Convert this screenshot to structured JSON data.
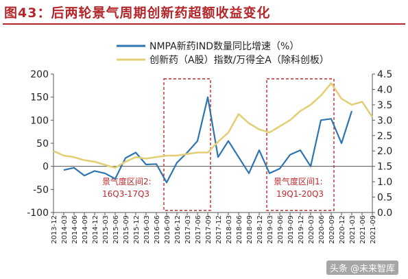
{
  "figure_title": "图43：后两轮景气周期创新药超额收益变化",
  "watermark": "头条 @未来智库",
  "chart_data": {
    "type": "line",
    "title": "",
    "grid": false,
    "legend_position": "top-center",
    "y_left": {
      "min": -100,
      "max": 200,
      "ticks": [
        -100,
        -50,
        0,
        50,
        100,
        150,
        200
      ]
    },
    "y_right": {
      "min": 0,
      "max": 4.5,
      "ticks": [
        "0.0",
        "0.5",
        "1.0",
        "1.5",
        "2.0",
        "2.5",
        "3.0",
        "3.5",
        "4.0",
        "4.5"
      ]
    },
    "x_ticks": [
      "2013-12",
      "2014-03",
      "2014-06",
      "2014-09",
      "2014-12",
      "2015-03",
      "2015-06",
      "2015-09",
      "2015-12",
      "2016-03",
      "2016-06",
      "2016-09",
      "2016-12",
      "2017-03",
      "2017-06",
      "2017-09",
      "2017-12",
      "2018-03",
      "2018-06",
      "2018-09",
      "2018-12",
      "2019-03",
      "2019-06",
      "2019-09",
      "2019-12",
      "2020-03",
      "2020-06",
      "2020-09",
      "2020-12",
      "2021-03",
      "2021-06",
      "2021-09"
    ],
    "series": [
      {
        "name": "NMPA新药IND数量同比增速（%）",
        "axis": "left",
        "color": "#2e74b0",
        "points": [
          [
            "2014-03",
            -8
          ],
          [
            "2014-06",
            -3
          ],
          [
            "2014-09",
            -20
          ],
          [
            "2014-12",
            -10
          ],
          [
            "2015-03",
            -15
          ],
          [
            "2015-06",
            -27
          ],
          [
            "2015-09",
            18
          ],
          [
            "2015-12",
            30
          ],
          [
            "2016-03",
            4
          ],
          [
            "2016-06",
            5
          ],
          [
            "2016-09",
            -35
          ],
          [
            "2016-12",
            8
          ],
          [
            "2017-03",
            30
          ],
          [
            "2017-06",
            55
          ],
          [
            "2017-09",
            150
          ],
          [
            "2017-12",
            20
          ],
          [
            "2018-03",
            55
          ],
          [
            "2018-06",
            20
          ],
          [
            "2018-09",
            -15
          ],
          [
            "2018-12",
            35
          ],
          [
            "2019-03",
            -15
          ],
          [
            "2019-06",
            -5
          ],
          [
            "2019-09",
            25
          ],
          [
            "2019-12",
            35
          ],
          [
            "2020-03",
            0
          ],
          [
            "2020-06",
            100
          ],
          [
            "2020-09",
            103
          ],
          [
            "2020-12",
            50
          ],
          [
            "2021-03",
            120
          ]
        ]
      },
      {
        "name": "创新药（A股）指数/万得全A（除科创板）",
        "axis": "right",
        "color": "#e3cf76",
        "points": [
          [
            "2013-12",
            2.0
          ],
          [
            "2014-03",
            1.85
          ],
          [
            "2014-06",
            1.8
          ],
          [
            "2014-09",
            1.7
          ],
          [
            "2014-12",
            1.65
          ],
          [
            "2015-03",
            1.55
          ],
          [
            "2015-06",
            1.45
          ],
          [
            "2015-09",
            1.65
          ],
          [
            "2015-12",
            1.8
          ],
          [
            "2016-03",
            1.75
          ],
          [
            "2016-06",
            1.8
          ],
          [
            "2016-09",
            1.85
          ],
          [
            "2016-12",
            1.85
          ],
          [
            "2017-03",
            1.9
          ],
          [
            "2017-06",
            1.95
          ],
          [
            "2017-09",
            1.95
          ],
          [
            "2017-12",
            2.3
          ],
          [
            "2018-03",
            2.6
          ],
          [
            "2018-06",
            3.2
          ],
          [
            "2018-09",
            2.9
          ],
          [
            "2018-12",
            2.7
          ],
          [
            "2019-03",
            2.6
          ],
          [
            "2019-06",
            2.8
          ],
          [
            "2019-09",
            3.0
          ],
          [
            "2019-12",
            3.3
          ],
          [
            "2020-03",
            3.5
          ],
          [
            "2020-06",
            3.8
          ],
          [
            "2020-09",
            4.2
          ],
          [
            "2020-12",
            3.7
          ],
          [
            "2021-03",
            3.5
          ],
          [
            "2021-06",
            3.6
          ],
          [
            "2021-09",
            3.1
          ]
        ]
      }
    ],
    "annotations": [
      {
        "label": "景气度区间2:",
        "sublabel": "16Q3-17Q3",
        "x_start": "2016-09",
        "x_end": "2017-09"
      },
      {
        "label": "景气度区间1:",
        "sublabel": "19Q1-20Q3",
        "x_start": "2019-03",
        "x_end": "2020-09"
      }
    ]
  }
}
